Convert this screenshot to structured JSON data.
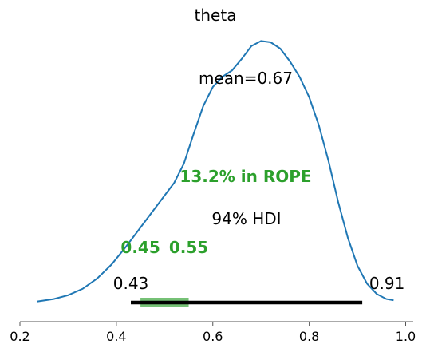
{
  "chart_data": {
    "type": "line",
    "title": "theta",
    "xlabel": "",
    "ylabel": "",
    "xlim": [
      0.2,
      1.0
    ],
    "x_ticks": [
      "0.2",
      "0.4",
      "0.6",
      "0.8",
      "1.0"
    ],
    "y_axis_visible": false,
    "grid": false,
    "series": [
      {
        "color": "#1f77b4",
        "x": [
          0.235,
          0.27,
          0.3,
          0.33,
          0.36,
          0.39,
          0.42,
          0.45,
          0.48,
          0.5,
          0.52,
          0.54,
          0.56,
          0.58,
          0.6,
          0.62,
          0.64,
          0.66,
          0.68,
          0.7,
          0.72,
          0.74,
          0.76,
          0.78,
          0.8,
          0.82,
          0.84,
          0.86,
          0.88,
          0.9,
          0.92,
          0.94,
          0.96,
          0.975
        ],
        "y": [
          0.02,
          0.04,
          0.07,
          0.12,
          0.2,
          0.31,
          0.45,
          0.6,
          0.75,
          0.85,
          0.95,
          1.1,
          1.33,
          1.55,
          1.7,
          1.78,
          1.83,
          1.92,
          2.02,
          2.06,
          2.05,
          2.0,
          1.9,
          1.78,
          1.62,
          1.4,
          1.12,
          0.8,
          0.52,
          0.3,
          0.16,
          0.08,
          0.04,
          0.03
        ]
      }
    ],
    "mean_label": "mean=0.67",
    "hdi": {
      "label": "94% HDI",
      "low": 0.43,
      "high": 0.91,
      "low_label": "0.43",
      "high_label": "0.91",
      "color": "#000000"
    },
    "rope": {
      "label": "13.2% in ROPE",
      "low": 0.45,
      "high": 0.55,
      "low_label": "0.45",
      "high_label": "0.55",
      "color": "#2ca02c"
    }
  }
}
